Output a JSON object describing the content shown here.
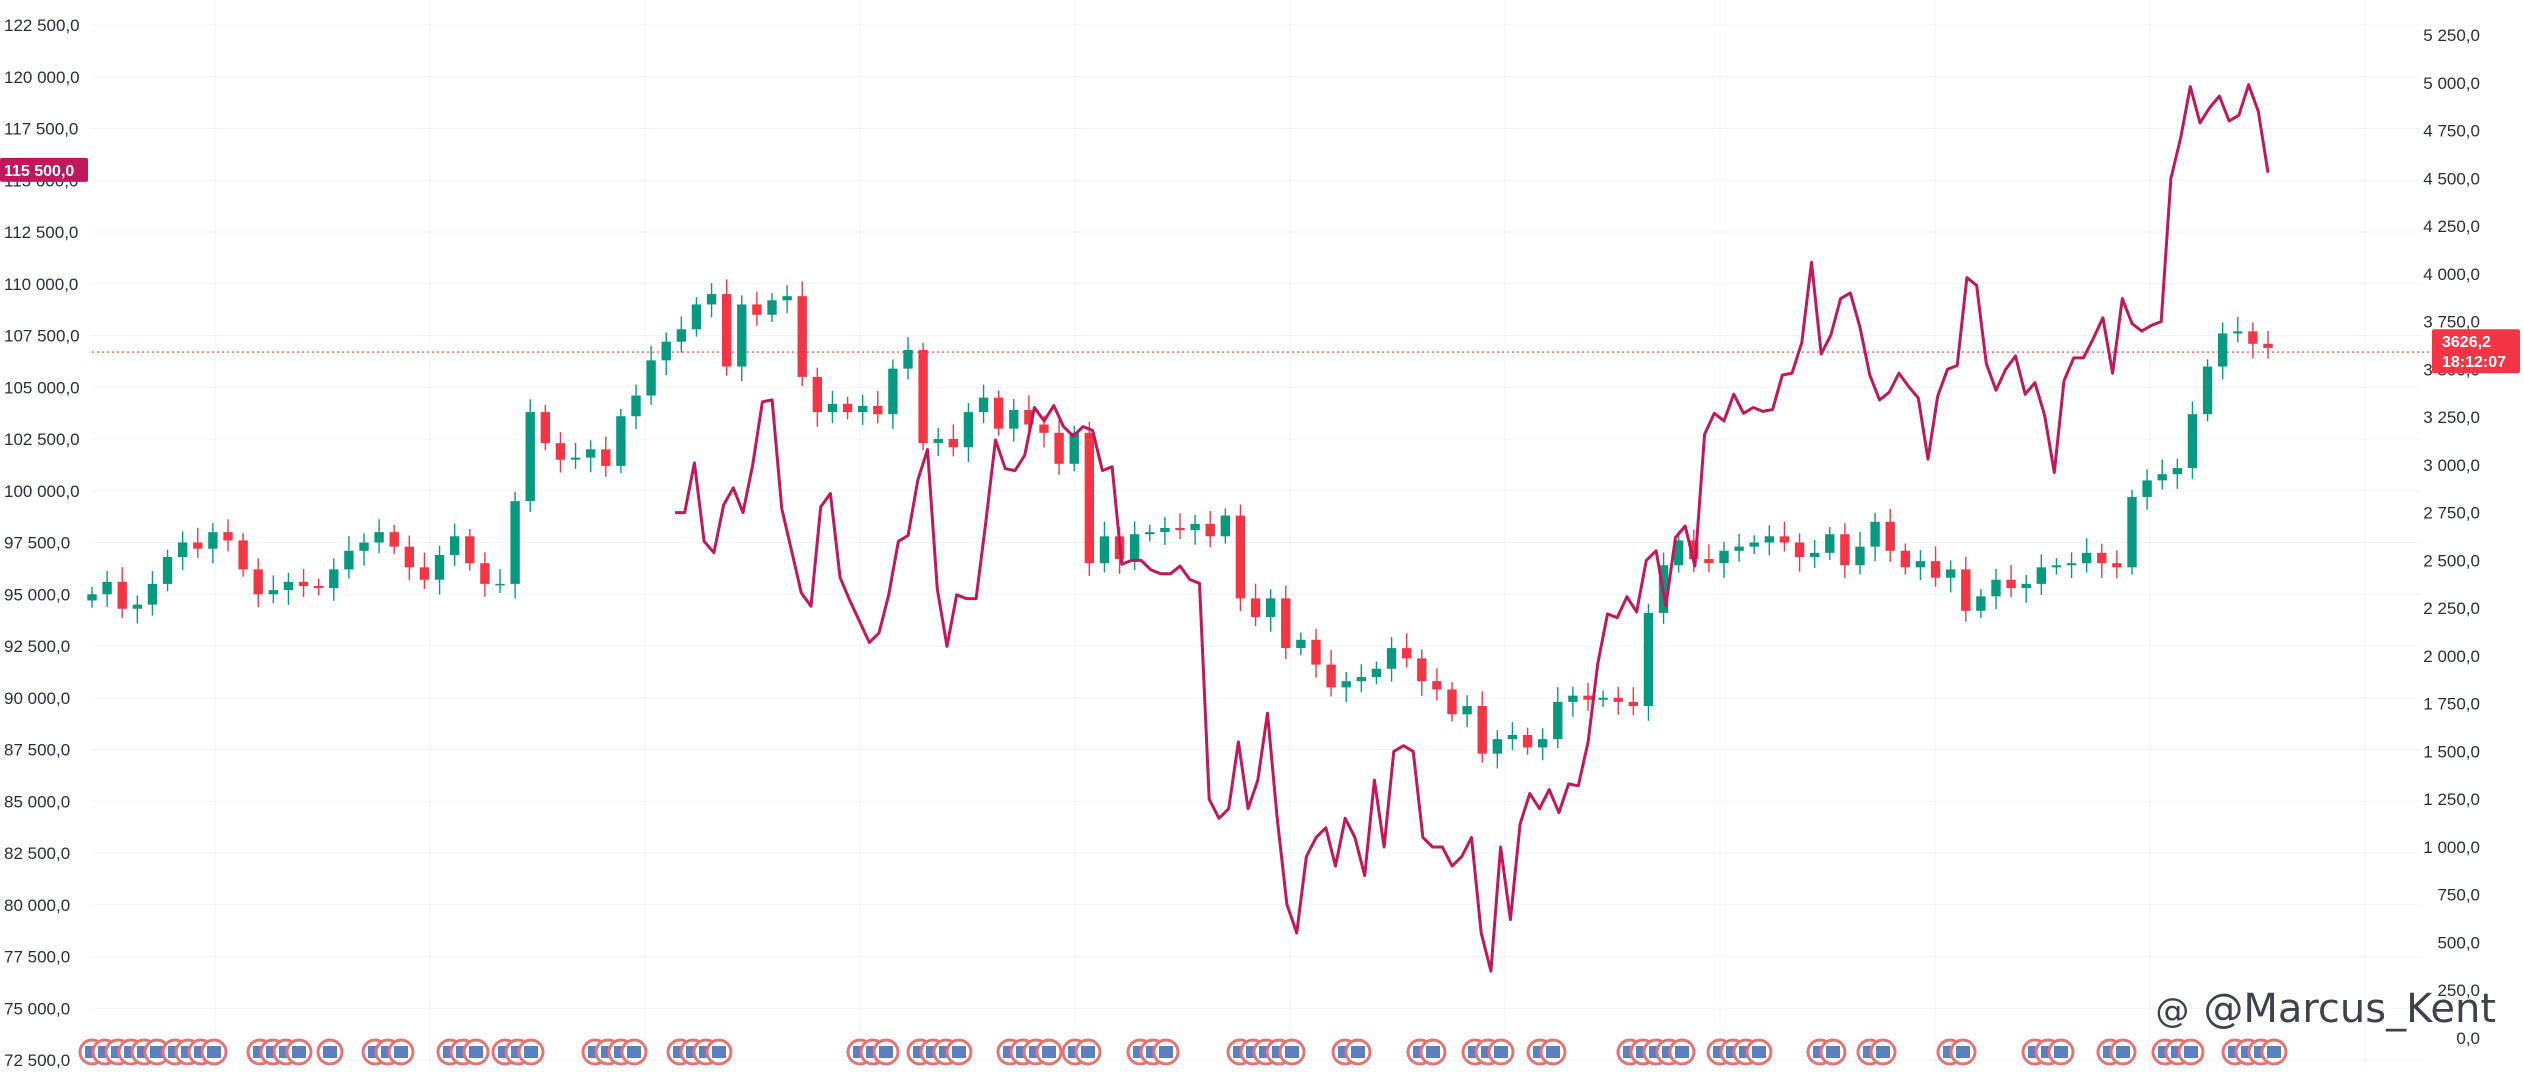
{
  "chart_data": {
    "type": "line",
    "left_axis": {
      "ticks": [
        "122 500,0",
        "120 000,0",
        "117 500,0",
        "115 000,0",
        "112 500,0",
        "110 000,0",
        "107 500,0",
        "105 000,0",
        "102 500,0",
        "100 000,0",
        "97 500,0",
        "95 000,0",
        "92 500,0",
        "90 000,0",
        "87 500,0",
        "85 000,0",
        "82 500,0",
        "80 000,0",
        "77 500,0",
        "75 000,0",
        "72 500,0"
      ],
      "tick_values": [
        122500,
        120000,
        117500,
        115000,
        112500,
        110000,
        107500,
        105000,
        102500,
        100000,
        97500,
        95000,
        92500,
        90000,
        87500,
        85000,
        82500,
        80000,
        77500,
        75000,
        72500
      ],
      "range": [
        72500,
        123500
      ]
    },
    "right_axis": {
      "ticks": [
        "5 250,0",
        "5 000,0",
        "4 750,0",
        "4 500,0",
        "4 250,0",
        "4 000,0",
        "3 750,0",
        "3 500,0",
        "3 250,0",
        "3 000,0",
        "2 750,0",
        "2 500,0",
        "2 250,0",
        "2 000,0",
        "1 750,0",
        "1 500,0",
        "1 250,0",
        "1 000,0",
        "750,0",
        "500,0",
        "250,0",
        "0,0"
      ],
      "tick_values": [
        5250,
        5000,
        4750,
        4500,
        4250,
        4000,
        3750,
        3500,
        3250,
        3000,
        2750,
        2500,
        2250,
        2000,
        1750,
        1500,
        1250,
        1000,
        750,
        500,
        250,
        0
      ],
      "range": [
        0,
        5400
      ]
    },
    "price_tags": {
      "left": {
        "text": "115 500,0",
        "value": 115500,
        "color": "#c2185b"
      },
      "right": {
        "text": "3626,2",
        "subtext": "18:12:07",
        "value": 3626.2,
        "color": "#f23645"
      }
    },
    "current_price_line": 106700,
    "candles": [
      95000,
      95600,
      94300,
      94500,
      95500,
      96800,
      97500,
      97200,
      98000,
      97600,
      96200,
      95000,
      95200,
      95600,
      95400,
      95300,
      96200,
      97100,
      97500,
      98000,
      97300,
      96300,
      95700,
      96900,
      97800,
      96500,
      95500,
      95500,
      99500,
      103800,
      102300,
      101500,
      101600,
      102000,
      101200,
      103600,
      104600,
      106300,
      107200,
      107800,
      109000,
      109500,
      106000,
      109000,
      108500,
      109200,
      109400,
      105500,
      103800,
      104200,
      103800,
      104100,
      103700,
      105900,
      106800,
      102300,
      102500,
      102100,
      103800,
      104500,
      103000,
      103900,
      103200,
      102800,
      101300,
      102800,
      96500,
      97800,
      96700,
      97900,
      98000,
      98200,
      98100,
      98400,
      97800,
      98800,
      94800,
      93900,
      94800,
      92400,
      92800,
      91600,
      90500,
      90800,
      91000,
      91400,
      92400,
      91900,
      90800,
      90400,
      89200,
      89600,
      87300,
      88000,
      88200,
      87600,
      88000,
      89800,
      90100,
      89900,
      90000,
      89800,
      89600,
      94100,
      96400,
      97600,
      96700,
      96500,
      97100,
      97300,
      97500,
      97800,
      97500,
      96800,
      97000,
      97900,
      96400,
      97300,
      98500,
      97100,
      96300,
      96600,
      95800,
      96200,
      94200,
      94900,
      95700,
      95300,
      95500,
      96300,
      96400,
      96500,
      97000,
      96500,
      96300,
      99700,
      100500,
      100800,
      101100,
      103700,
      106000,
      107600,
      107700,
      107100,
      106900
    ],
    "series_line": [
      2750,
      2750,
      3010,
      2600,
      2540,
      2790,
      2880,
      2750,
      3000,
      3330,
      3340,
      2770,
      2550,
      2330,
      2260,
      2780,
      2850,
      2410,
      2290,
      2180,
      2070,
      2120,
      2320,
      2600,
      2630,
      2920,
      3080,
      2350,
      2050,
      2320,
      2300,
      2300,
      2700,
      3130,
      2980,
      2970,
      3050,
      3300,
      3230,
      3310,
      3200,
      3150,
      3200,
      3180,
      2970,
      2990,
      2480,
      2500,
      2500,
      2450,
      2430,
      2430,
      2470,
      2400,
      2380,
      1250,
      1150,
      1200,
      1550,
      1200,
      1350,
      1700,
      1150,
      700,
      550,
      950,
      1050,
      1100,
      900,
      1150,
      1050,
      850,
      1350,
      1000,
      1500,
      1530,
      1500,
      1050,
      1000,
      1000,
      900,
      950,
      1050,
      550,
      350,
      1000,
      620,
      1120,
      1280,
      1200,
      1300,
      1180,
      1330,
      1320,
      1550,
      1960,
      2220,
      2200,
      2310,
      2230,
      2500,
      2550,
      2260,
      2620,
      2680,
      2470,
      3160,
      3270,
      3230,
      3370,
      3270,
      3300,
      3280,
      3290,
      3470,
      3480,
      3640,
      4060,
      3580,
      3680,
      3870,
      3900,
      3720,
      3470,
      3340,
      3380,
      3480,
      3410,
      3350,
      3030,
      3360,
      3500,
      3520,
      3980,
      3940,
      3530,
      3390,
      3500,
      3570,
      3370,
      3430,
      3260,
      2960,
      3440,
      3560,
      3560,
      3660,
      3770,
      3480,
      3870,
      3740,
      3700,
      3730,
      3750,
      4500,
      4710,
      4980,
      4790,
      4870,
      4930,
      4800,
      4830,
      4990,
      4850,
      4530
    ],
    "series_color": "#c2185b",
    "up_color": "#089981",
    "down_color": "#f23645",
    "grid": true
  },
  "watermark": {
    "icon": "threads-icon",
    "glyph": "@",
    "text": "@Marcus_Kent"
  }
}
